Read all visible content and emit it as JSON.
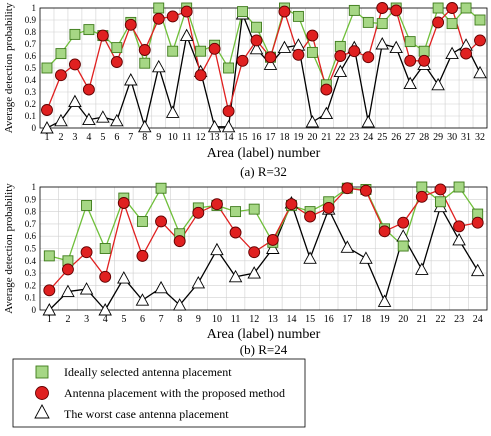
{
  "chart_data": [
    {
      "type": "line",
      "caption": "(a)   R=32",
      "xlabel": "Area (label) number",
      "ylabel": "Average detection probability",
      "ylim": [
        0,
        1
      ],
      "yticks": [
        "0",
        "0.1",
        "0.2",
        "0.3",
        "0.4",
        "0.5",
        "0.6",
        "0.7",
        "0.8",
        "0.9",
        "1"
      ],
      "x": [
        1,
        2,
        3,
        4,
        5,
        6,
        7,
        8,
        9,
        10,
        11,
        12,
        13,
        14,
        15,
        16,
        17,
        18,
        19,
        20,
        21,
        22,
        23,
        24,
        25,
        26,
        27,
        28,
        29,
        30,
        31,
        32
      ],
      "grid": true,
      "series": [
        {
          "name": "Ideally selected antenna placement",
          "color": "#5aa02c",
          "marker": "square",
          "values": [
            0.5,
            0.62,
            0.78,
            0.82,
            0.77,
            0.67,
            0.88,
            0.54,
            1.0,
            0.64,
            1.0,
            0.64,
            0.69,
            0.5,
            0.97,
            0.84,
            0.59,
            1.0,
            0.93,
            0.63,
            0.36,
            0.68,
            0.98,
            0.88,
            0.87,
            1.0,
            0.72,
            0.64,
            1.0,
            0.87,
            1.0,
            0.9
          ]
        },
        {
          "name": "Antenna placement with the proposed method",
          "color": "#e02020",
          "marker": "circle",
          "values": [
            0.15,
            0.44,
            0.53,
            0.32,
            0.77,
            0.55,
            0.86,
            0.65,
            0.91,
            0.93,
            0.97,
            0.44,
            0.66,
            0.14,
            0.56,
            0.73,
            0.59,
            0.97,
            0.61,
            0.77,
            0.32,
            0.6,
            0.64,
            0.59,
            1.0,
            0.98,
            0.56,
            0.56,
            0.88,
            1.0,
            0.62,
            0.73
          ]
        },
        {
          "name": "The worst case antenna placement",
          "color": "#111111",
          "marker": "triangle",
          "values": [
            0.0,
            0.06,
            0.22,
            0.07,
            0.09,
            0.06,
            0.4,
            0.01,
            0.51,
            0.13,
            0.77,
            0.47,
            0.01,
            0.01,
            0.95,
            0.66,
            0.53,
            0.67,
            0.69,
            0.05,
            0.12,
            0.47,
            0.67,
            0.05,
            0.7,
            0.67,
            0.37,
            0.53,
            0.36,
            0.62,
            0.69,
            0.46
          ]
        }
      ]
    },
    {
      "type": "line",
      "caption": "(b)  R=24",
      "xlabel": "Area (label) number",
      "ylabel": "Average detection probability",
      "ylim": [
        0,
        1
      ],
      "yticks": [
        "0",
        "0.1",
        "0.2",
        "0.3",
        "0.4",
        "0.5",
        "0.6",
        "0.7",
        "0.8",
        "0.9",
        "1"
      ],
      "x": [
        1,
        2,
        3,
        4,
        5,
        6,
        7,
        8,
        9,
        10,
        11,
        12,
        13,
        14,
        15,
        16,
        17,
        18,
        19,
        20,
        21,
        22,
        23,
        24
      ],
      "grid": true,
      "series": [
        {
          "name": "Ideally selected antenna placement",
          "color": "#5aa02c",
          "marker": "square",
          "values": [
            0.44,
            0.4,
            0.85,
            0.5,
            0.91,
            0.72,
            0.99,
            0.62,
            0.83,
            0.85,
            0.8,
            0.82,
            0.55,
            0.85,
            0.8,
            0.88,
            0.99,
            0.98,
            0.66,
            0.52,
            1.0,
            0.88,
            1.0,
            0.78
          ]
        },
        {
          "name": "Antenna placement with the proposed method",
          "color": "#e02020",
          "marker": "circle",
          "values": [
            0.16,
            0.33,
            0.47,
            0.27,
            0.87,
            0.44,
            0.72,
            0.56,
            0.79,
            0.86,
            0.63,
            0.47,
            0.57,
            0.86,
            0.76,
            0.83,
            0.99,
            0.97,
            0.64,
            0.71,
            0.92,
            0.98,
            0.68,
            0.71
          ]
        },
        {
          "name": "The worst case antenna placement",
          "color": "#111111",
          "marker": "triangle",
          "values": [
            0.0,
            0.15,
            0.17,
            0.0,
            0.26,
            0.08,
            0.18,
            0.04,
            0.22,
            0.49,
            0.27,
            0.3,
            0.5,
            0.87,
            0.42,
            0.82,
            0.51,
            0.42,
            0.07,
            0.6,
            0.33,
            0.84,
            0.57,
            0.32
          ]
        }
      ]
    }
  ],
  "legend": {
    "placement": "bottom-left",
    "items": [
      {
        "label": "Ideally selected antenna placement",
        "marker": "square",
        "color": "#5aa02c"
      },
      {
        "label": "Antenna placement with the proposed method",
        "marker": "circle",
        "color": "#e02020"
      },
      {
        "label": "The worst case antenna placement",
        "marker": "triangle",
        "color": "#111111"
      }
    ]
  }
}
